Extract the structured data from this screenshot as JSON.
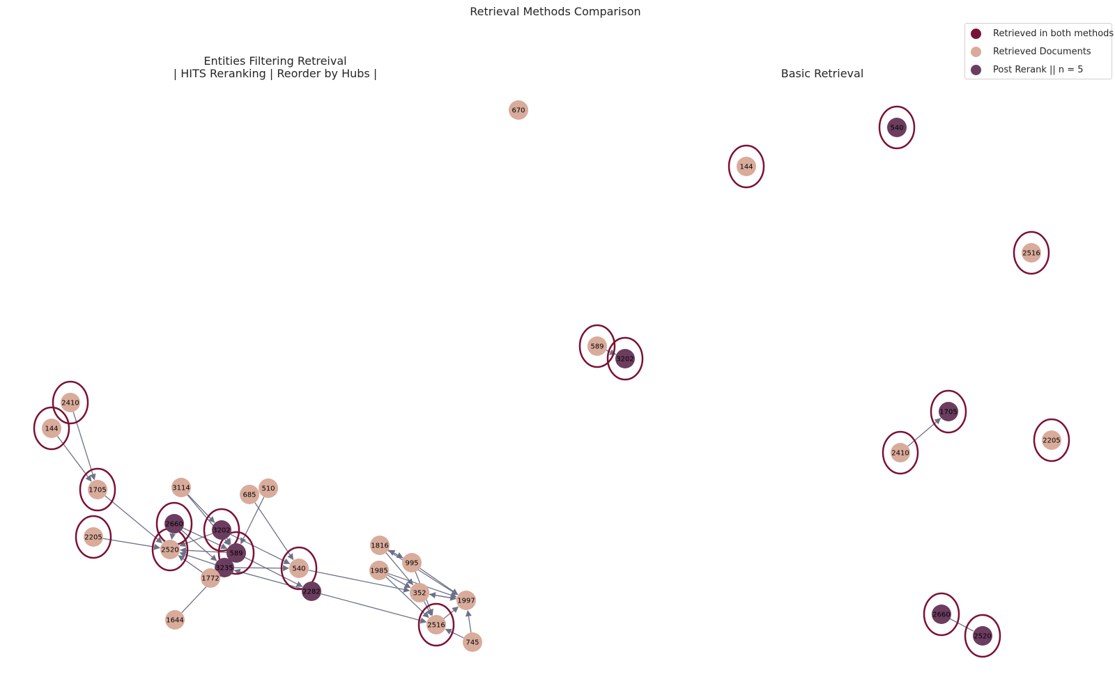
{
  "figure": {
    "title": "Retrieval Methods Comparison",
    "left_title_line1": "Entities Filtering Retreival",
    "left_title_line2": "| HITS Reranking | Reorder by Hubs |",
    "right_title": "Basic Retrieval"
  },
  "colors": {
    "both": "#7b1134",
    "retrieved": "#d9ab9b",
    "post_rerank": "#6b3d5f",
    "edge": "#6c7187"
  },
  "legend": [
    {
      "label": "Retrieved in both methods",
      "color": "#7b1134"
    },
    {
      "label": "Retrieved Documents",
      "color": "#d9ab9b"
    },
    {
      "label": "Post Rerank || n = 5",
      "color": "#6b3d5f"
    }
  ],
  "nodes": [
    {
      "id": "L2410",
      "label": "2410",
      "kind": "retrieved",
      "both": true
    },
    {
      "id": "L144",
      "label": "144",
      "kind": "retrieved",
      "both": true
    },
    {
      "id": "L1705",
      "label": "1705",
      "kind": "retrieved",
      "both": true
    },
    {
      "id": "L2205",
      "label": "2205",
      "kind": "retrieved",
      "both": true
    },
    {
      "id": "L3114",
      "label": "3114",
      "kind": "retrieved",
      "both": false
    },
    {
      "id": "L2660",
      "label": "2660",
      "kind": "post_rerank",
      "both": true
    },
    {
      "id": "L2520",
      "label": "2520",
      "kind": "retrieved",
      "both": true
    },
    {
      "id": "L3202",
      "label": "3202",
      "kind": "post_rerank",
      "both": true
    },
    {
      "id": "L589",
      "label": "589",
      "kind": "post_rerank",
      "both": true
    },
    {
      "id": "L3235",
      "label": "3235",
      "kind": "post_rerank",
      "both": false
    },
    {
      "id": "L1772",
      "label": "1772",
      "kind": "retrieved",
      "both": false
    },
    {
      "id": "L1644",
      "label": "1644",
      "kind": "retrieved",
      "both": false
    },
    {
      "id": "L685",
      "label": "685",
      "kind": "retrieved",
      "both": false
    },
    {
      "id": "L510",
      "label": "510",
      "kind": "retrieved",
      "both": false
    },
    {
      "id": "L540",
      "label": "540",
      "kind": "retrieved",
      "both": true
    },
    {
      "id": "L2282",
      "label": "2282",
      "kind": "post_rerank",
      "both": false
    },
    {
      "id": "L1816",
      "label": "1816",
      "kind": "retrieved",
      "both": false
    },
    {
      "id": "L995",
      "label": "995",
      "kind": "retrieved",
      "both": false
    },
    {
      "id": "L1985",
      "label": "1985",
      "kind": "retrieved",
      "both": false
    },
    {
      "id": "L352",
      "label": "352",
      "kind": "retrieved",
      "both": false
    },
    {
      "id": "L1997",
      "label": "1997",
      "kind": "retrieved",
      "both": false
    },
    {
      "id": "L2516",
      "label": "2516",
      "kind": "retrieved",
      "both": true
    },
    {
      "id": "L745",
      "label": "745",
      "kind": "retrieved",
      "both": false
    },
    {
      "id": "L670",
      "label": "670",
      "kind": "retrieved",
      "both": false
    },
    {
      "id": "R589",
      "label": "589",
      "kind": "retrieved",
      "both": true
    },
    {
      "id": "R3202",
      "label": "3202",
      "kind": "post_rerank",
      "both": true
    },
    {
      "id": "R144",
      "label": "144",
      "kind": "retrieved",
      "both": true
    },
    {
      "id": "R540",
      "label": "540",
      "kind": "post_rerank",
      "both": true
    },
    {
      "id": "R2516",
      "label": "2516",
      "kind": "retrieved",
      "both": true
    },
    {
      "id": "R1705",
      "label": "1705",
      "kind": "post_rerank",
      "both": true
    },
    {
      "id": "R2410",
      "label": "2410",
      "kind": "retrieved",
      "both": true
    },
    {
      "id": "R2205",
      "label": "2205",
      "kind": "retrieved",
      "both": true
    },
    {
      "id": "R2660",
      "label": "2660",
      "kind": "post_rerank",
      "both": true
    },
    {
      "id": "R2520",
      "label": "2520",
      "kind": "post_rerank",
      "both": true
    }
  ],
  "edges": [
    {
      "from": "L2410",
      "to": "L1705",
      "arrow": true
    },
    {
      "from": "L144",
      "to": "L1705",
      "arrow": true
    },
    {
      "from": "L1705",
      "to": "L2520",
      "arrow": true
    },
    {
      "from": "L2205",
      "to": "L2520",
      "arrow": true
    },
    {
      "from": "L3114",
      "to": "L3202",
      "arrow": true
    },
    {
      "from": "L3114",
      "to": "L589",
      "arrow": true
    },
    {
      "from": "L2660",
      "to": "L2520",
      "arrow": true
    },
    {
      "from": "L2660",
      "to": "L589",
      "arrow": true
    },
    {
      "from": "L2660",
      "to": "L3235",
      "arrow": true
    },
    {
      "from": "L3202",
      "to": "L2520",
      "arrow": true
    },
    {
      "from": "L3202",
      "to": "L589",
      "arrow": true
    },
    {
      "from": "L3202",
      "to": "L540",
      "arrow": true
    },
    {
      "from": "L589",
      "to": "L2520",
      "arrow": true
    },
    {
      "from": "L589",
      "to": "L2282",
      "arrow": true
    },
    {
      "from": "L3235",
      "to": "L2520",
      "arrow": true
    },
    {
      "from": "L3235",
      "to": "L589",
      "arrow": true
    },
    {
      "from": "L3235",
      "to": "L540",
      "arrow": true
    },
    {
      "from": "L1772",
      "to": "L2520",
      "arrow": true
    },
    {
      "from": "L1772",
      "to": "L589",
      "arrow": true
    },
    {
      "from": "L1644",
      "to": "L3235",
      "arrow": false
    },
    {
      "from": "L685",
      "to": "L540",
      "arrow": true
    },
    {
      "from": "L510",
      "to": "L589",
      "arrow": true
    },
    {
      "from": "L2282",
      "to": "L3235",
      "arrow": true
    },
    {
      "from": "L2282",
      "to": "L2516",
      "arrow": true
    },
    {
      "from": "L540",
      "to": "L352",
      "arrow": true
    },
    {
      "from": "L1816",
      "to": "L995",
      "arrow": true
    },
    {
      "from": "L995",
      "to": "L1816",
      "arrow": true
    },
    {
      "from": "L1816",
      "to": "L352",
      "arrow": true
    },
    {
      "from": "L1816",
      "to": "L1997",
      "arrow": true
    },
    {
      "from": "L995",
      "to": "L1997",
      "arrow": true
    },
    {
      "from": "L995",
      "to": "L2516",
      "arrow": true
    },
    {
      "from": "L1985",
      "to": "L352",
      "arrow": true
    },
    {
      "from": "L1985",
      "to": "L2516",
      "arrow": true
    },
    {
      "from": "L1985",
      "to": "L1997",
      "arrow": true
    },
    {
      "from": "L1997",
      "to": "L352",
      "arrow": true
    },
    {
      "from": "L352",
      "to": "L1997",
      "arrow": true
    },
    {
      "from": "L352",
      "to": "L2516",
      "arrow": true
    },
    {
      "from": "L2516",
      "to": "L1997",
      "arrow": true
    },
    {
      "from": "L745",
      "to": "L1997",
      "arrow": true
    },
    {
      "from": "L745",
      "to": "L2516",
      "arrow": true
    },
    {
      "from": "R589",
      "to": "R3202",
      "arrow": true
    },
    {
      "from": "R2410",
      "to": "R1705",
      "arrow": true
    },
    {
      "from": "R2660",
      "to": "R2520",
      "arrow": false
    }
  ]
}
